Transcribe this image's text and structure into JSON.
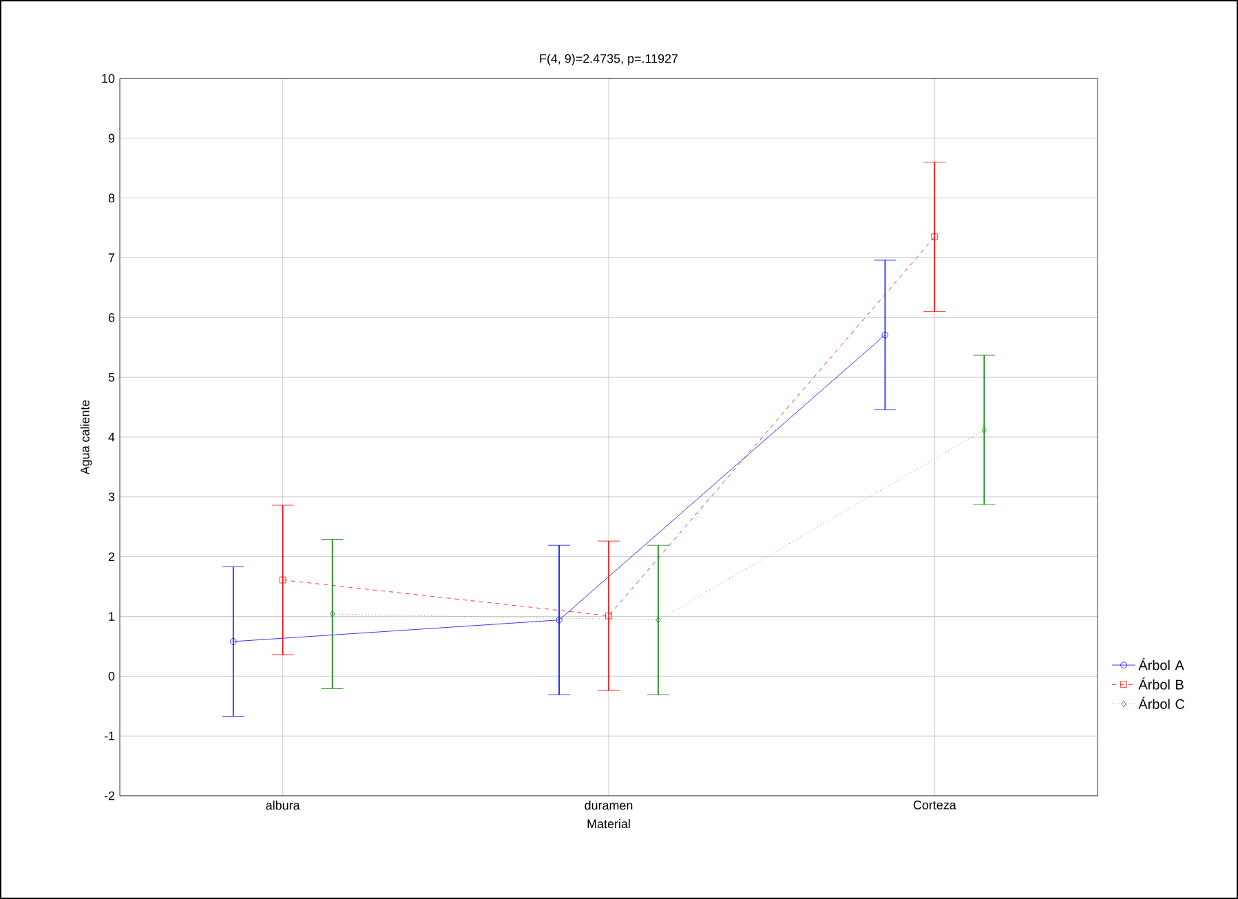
{
  "chart_data": {
    "type": "line",
    "title": "F(4, 9)=2.4735, p=.11927",
    "xlabel": "Material",
    "ylabel": "Agua caliente",
    "categories": [
      "albura",
      "duramen",
      "Corteza"
    ],
    "series": [
      {
        "name": "Árbol A",
        "color": "#0000ff",
        "values": [
          0.58,
          0.94,
          5.71
        ],
        "errors": [
          1.25,
          1.25,
          1.25
        ],
        "marker": "circle",
        "line_style": "solid"
      },
      {
        "name": "Árbol B",
        "color": "#ff0000",
        "values": [
          1.61,
          1.01,
          7.35
        ],
        "errors": [
          1.25,
          1.25,
          1.25
        ],
        "marker": "square",
        "line_style": "dashed"
      },
      {
        "name": "Árbol C",
        "color": "#008000",
        "values": [
          1.04,
          0.94,
          4.12
        ],
        "errors": [
          1.25,
          1.25,
          1.25
        ],
        "marker": "diamond",
        "line_style": "dotted"
      }
    ],
    "ylim": [
      -2,
      10
    ],
    "yticks": [
      -2,
      -1,
      0,
      1,
      2,
      3,
      4,
      5,
      6,
      7,
      8,
      9,
      10
    ],
    "grid": true,
    "legend": "bottom right"
  }
}
